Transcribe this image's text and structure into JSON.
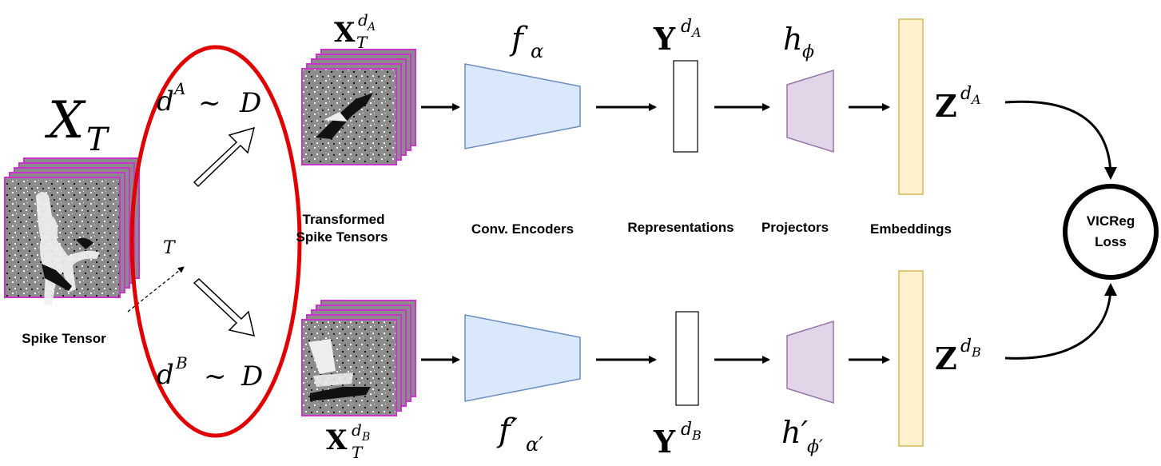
{
  "input": {
    "tensor_symbol": "X",
    "tensor_sub": "T",
    "label": "Spike Tensor",
    "dist_symbol": "T"
  },
  "augment": {
    "top_d": "d",
    "top_sup": "A",
    "top_tilde": "~",
    "top_D": "D",
    "bot_d": "d",
    "bot_sup": "B",
    "bot_tilde": "~",
    "bot_D": "D",
    "highlight_color": "#e00000"
  },
  "stages": {
    "transformed_line1": "Transformed",
    "transformed_line2": "Spike Tensors",
    "encoders": "Conv. Encoders",
    "representations": "Representations",
    "projectors": "Projectors",
    "embeddings": "Embeddings"
  },
  "top_branch": {
    "x_sym": "X",
    "x_sub": "T",
    "x_sup": "d",
    "x_sup_sub": "A",
    "encoder": "f",
    "encoder_sub": "α",
    "rep": "Y",
    "rep_sup": "d",
    "rep_sup_sub": "A",
    "proj": "h",
    "proj_sub": "ϕ",
    "emb": "Z",
    "emb_sup": "d",
    "emb_sup_sub": "A"
  },
  "bottom_branch": {
    "x_sym": "X",
    "x_sub": "T",
    "x_sup": "d",
    "x_sup_sub": "B",
    "encoder": "f′",
    "encoder_sub": "α′",
    "rep": "Y",
    "rep_sup": "d",
    "rep_sup_sub": "B",
    "proj": "h′",
    "proj_sub": "ϕ′",
    "emb": "Z",
    "emb_sup": "d",
    "emb_sup_sub": "B"
  },
  "loss": {
    "line1": "VICReg",
    "line2": "Loss"
  },
  "colors": {
    "frame": "#cc33cc",
    "encoder_fill": "#dae8fc",
    "encoder_stroke": "#6c8ebf",
    "projector_fill": "#e1d5e7",
    "projector_stroke": "#9673a6",
    "embedding_fill": "#fff2cc",
    "embedding_stroke": "#d6b656",
    "image_gray": "#8a8a8a"
  }
}
